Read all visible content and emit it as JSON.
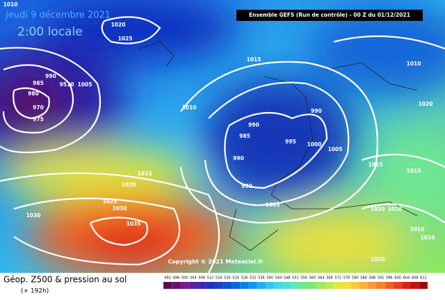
{
  "header": {
    "date": "Jeudi 9 décembre 2021",
    "time": "2:00 locale",
    "run": "Ensemble GEFS  (Run de contrôle)  -  00 Z du 01/12/2021"
  },
  "isobar_labels": [
    "1010",
    "1020",
    "1025",
    "990",
    "985",
    "980",
    "970",
    "975",
    "9510",
    "1005",
    "1010",
    "1015",
    "990",
    "990",
    "985",
    "995",
    "1000",
    "1005",
    "990",
    "990",
    "1015",
    "1020",
    "1025",
    "1030",
    "1030",
    "1035",
    "1005",
    "1015",
    "1015",
    "1020",
    "1010",
    "1020",
    "1020",
    "1010",
    "1010",
    "1020"
  ],
  "copyright": "Copyright © 2021 Meteociel.fr",
  "footer": {
    "title": "Géop. Z500 & pression au sol",
    "lead": "(+ 192h)"
  },
  "scale": {
    "labels": [
      "492",
      "496",
      "500",
      "504",
      "508",
      "512",
      "516",
      "520",
      "524",
      "528",
      "532",
      "536",
      "540",
      "544",
      "548",
      "552",
      "556",
      "560",
      "564",
      "568",
      "572",
      "576",
      "580",
      "584",
      "588",
      "592",
      "596",
      "600",
      "604",
      "608",
      "612"
    ],
    "colors": [
      "#5a0a5a",
      "#6a1070",
      "#7a1890",
      "#5a20a0",
      "#3a28b0",
      "#2030b8",
      "#1840c8",
      "#1050d8",
      "#0868e0",
      "#0880e8",
      "#1098f0",
      "#20b0f0",
      "#30c8f0",
      "#40d8e8",
      "#50e0d0",
      "#60e8b0",
      "#70e890",
      "#80e870",
      "#a0e860",
      "#c0e850",
      "#e0e840",
      "#f0e040",
      "#f8c840",
      "#f8b040",
      "#f89838",
      "#f88030",
      "#f06028",
      "#e84020",
      "#e02018",
      "#c81010",
      "#a00808"
    ]
  }
}
